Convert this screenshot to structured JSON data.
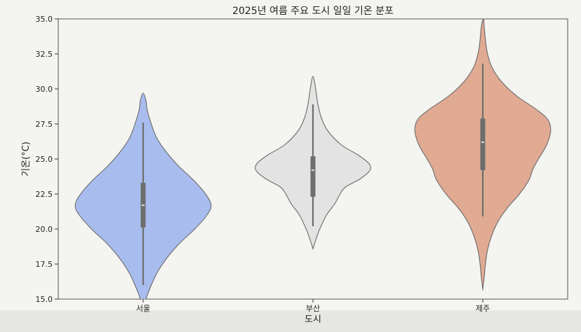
{
  "chart_data": {
    "type": "violin",
    "title": "2025년 여름 주요 도시 일일 기온 분포",
    "xlabel": "도시",
    "ylabel": "기온(°C)",
    "ylim": [
      15.0,
      35.0
    ],
    "yticks": [
      "15.0",
      "17.5",
      "20.0",
      "22.5",
      "25.0",
      "27.5",
      "30.0",
      "32.5",
      "35.0"
    ],
    "categories": [
      "서울",
      "부산",
      "제주"
    ],
    "grid": false,
    "violins": [
      {
        "category": "서울",
        "color": "#a8bdee",
        "whisker": [
          16.0,
          27.6
        ],
        "q1": 20.1,
        "median": 21.7,
        "q3": 23.3,
        "shape": [
          [
            14.5,
            0.0
          ],
          [
            15.0,
            0.04
          ],
          [
            16.0,
            0.12
          ],
          [
            17.0,
            0.22
          ],
          [
            18.0,
            0.36
          ],
          [
            19.0,
            0.54
          ],
          [
            20.0,
            0.76
          ],
          [
            21.0,
            0.94
          ],
          [
            21.7,
            1.0
          ],
          [
            22.5,
            0.92
          ],
          [
            23.5,
            0.74
          ],
          [
            24.5,
            0.52
          ],
          [
            25.5,
            0.34
          ],
          [
            26.5,
            0.2
          ],
          [
            27.5,
            0.12
          ],
          [
            28.5,
            0.06
          ],
          [
            29.2,
            0.04
          ],
          [
            29.7,
            0.0
          ]
        ]
      },
      {
        "category": "부산",
        "color": "#e3e3e3",
        "whisker": [
          20.2,
          28.9
        ],
        "q1": 22.3,
        "median": 24.2,
        "q3": 25.2,
        "shape": [
          [
            18.6,
            0.0
          ],
          [
            19.2,
            0.04
          ],
          [
            20.0,
            0.1
          ],
          [
            21.0,
            0.2
          ],
          [
            21.8,
            0.32
          ],
          [
            22.5,
            0.4
          ],
          [
            23.0,
            0.48
          ],
          [
            23.6,
            0.7
          ],
          [
            24.2,
            0.84
          ],
          [
            24.7,
            0.82
          ],
          [
            25.3,
            0.66
          ],
          [
            26.0,
            0.42
          ],
          [
            27.0,
            0.22
          ],
          [
            28.0,
            0.12
          ],
          [
            29.0,
            0.07
          ],
          [
            30.0,
            0.04
          ],
          [
            30.9,
            0.0
          ]
        ]
      },
      {
        "category": "제주",
        "color": "#e0aa93",
        "whisker": [
          20.9,
          31.8
        ],
        "q1": 24.2,
        "median": 26.2,
        "q3": 27.9,
        "shape": [
          [
            15.7,
            0.0
          ],
          [
            16.5,
            0.02
          ],
          [
            17.5,
            0.04
          ],
          [
            18.5,
            0.07
          ],
          [
            19.5,
            0.13
          ],
          [
            20.5,
            0.22
          ],
          [
            21.5,
            0.36
          ],
          [
            22.5,
            0.54
          ],
          [
            23.5,
            0.68
          ],
          [
            24.3,
            0.74
          ],
          [
            25.0,
            0.82
          ],
          [
            26.0,
            0.94
          ],
          [
            27.0,
            1.0
          ],
          [
            27.8,
            0.96
          ],
          [
            28.5,
            0.8
          ],
          [
            29.5,
            0.5
          ],
          [
            30.5,
            0.28
          ],
          [
            31.5,
            0.14
          ],
          [
            32.5,
            0.07
          ],
          [
            33.5,
            0.04
          ],
          [
            34.5,
            0.02
          ],
          [
            35.0,
            0.01
          ]
        ]
      }
    ]
  }
}
